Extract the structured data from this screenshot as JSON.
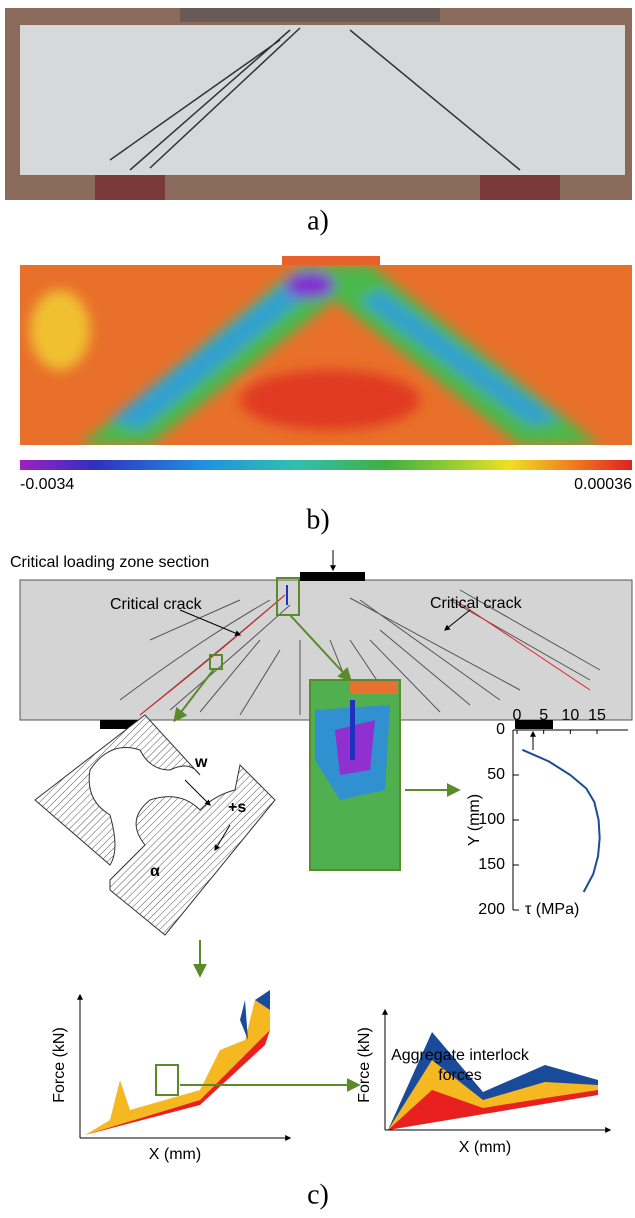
{
  "panel_a": {
    "label": "a)"
  },
  "panel_b": {
    "label": "b)",
    "colorbar_min": "-0.0034",
    "colorbar_max": "0.00036"
  },
  "panel_c": {
    "label": "c)",
    "zone_label": "Critical loading zone section",
    "crack_labels": [
      "Critical crack",
      "Critical crack"
    ],
    "interlock": {
      "w": "w",
      "s": "+s",
      "alpha": "α"
    },
    "shear_plot": {
      "xticks": [
        0,
        5,
        10,
        15
      ],
      "yticks": [
        0,
        50,
        100,
        150,
        200
      ],
      "xlim": [
        0,
        18
      ],
      "ylim": [
        0,
        200
      ],
      "ylabel": "Y (mm)",
      "xlabel": "τ (MPa)",
      "curve": {
        "y": [
          22,
          35,
          50,
          65,
          80,
          100,
          120,
          140,
          160,
          180
        ],
        "tau": [
          1,
          6,
          10,
          13,
          14.5,
          15.3,
          15.5,
          15.2,
          14.3,
          12.5
        ]
      }
    },
    "force_plot": {
      "ylabel": "Force (kN)",
      "xlabel": "X (mm)"
    },
    "aggregate_plot": {
      "title": "Aggregate interlock forces",
      "ylabel": "Force (kN)",
      "xlabel": "X (mm)"
    }
  }
}
